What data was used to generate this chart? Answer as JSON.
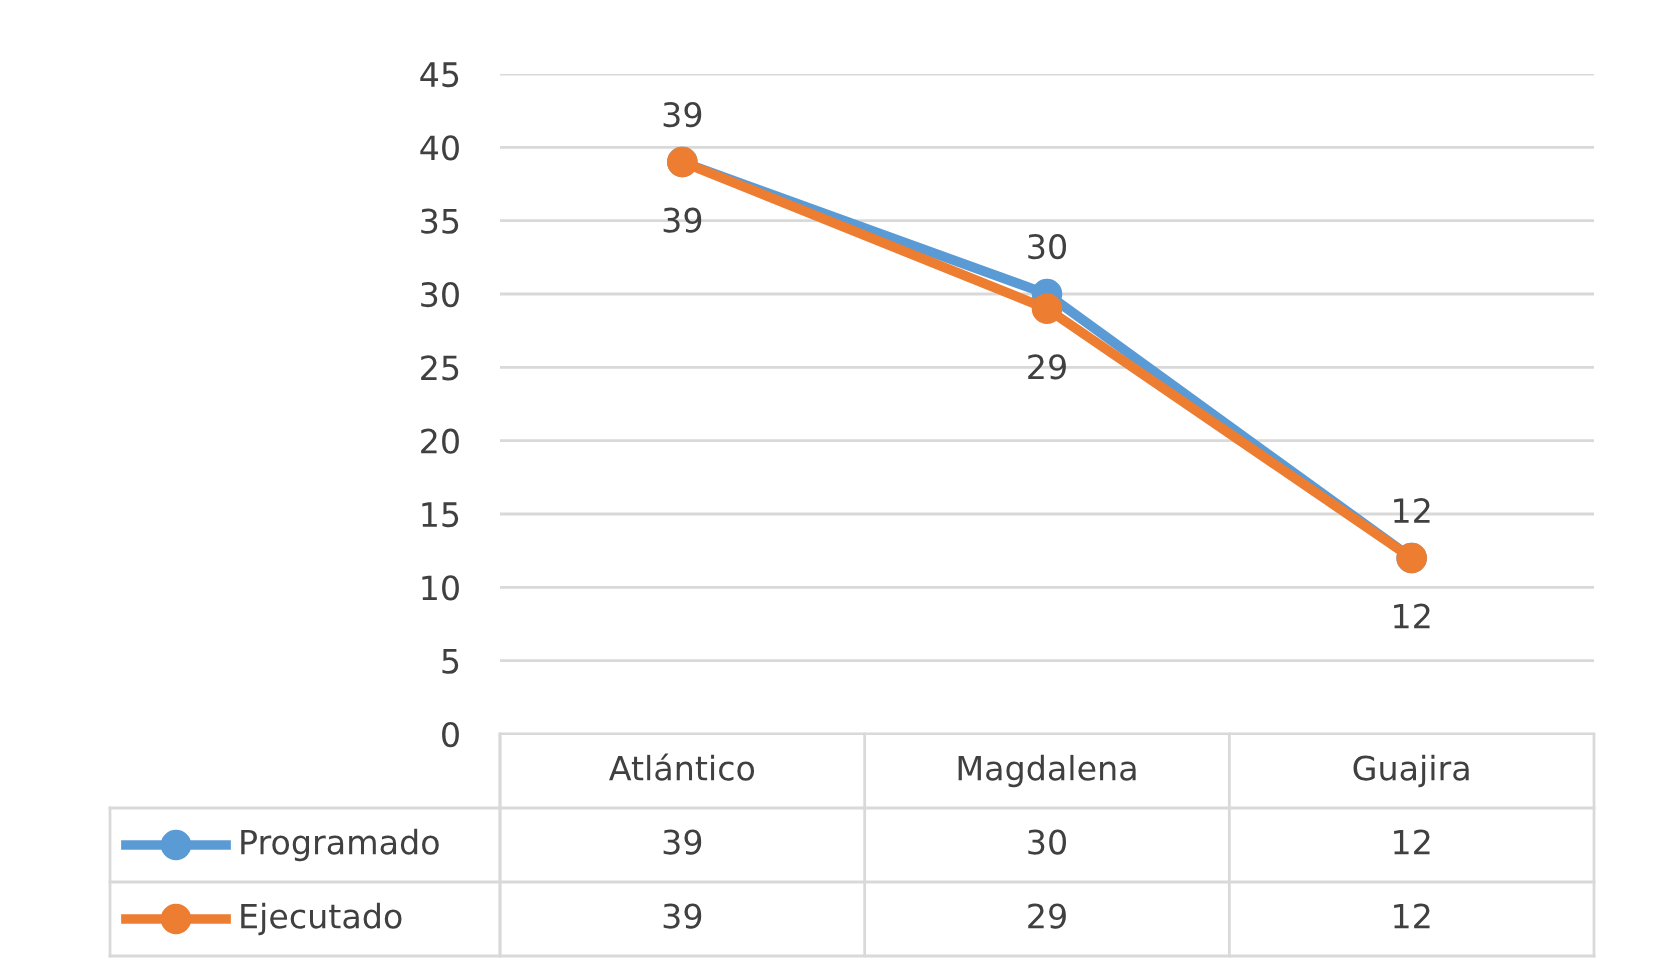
{
  "chart_data": {
    "type": "line",
    "categories": [
      "Atlántico",
      "Magdalena",
      "Guajira"
    ],
    "series": [
      {
        "name": "Programado",
        "color": "#5b9bd5",
        "values": [
          39,
          30,
          12
        ],
        "value_labels": [
          "39",
          "30",
          "12"
        ]
      },
      {
        "name": "Ejecutado",
        "color": "#ed7d31",
        "values": [
          39,
          29,
          12
        ],
        "value_labels": [
          "39",
          "29",
          "12"
        ]
      }
    ],
    "annotations": [
      {
        "text": "39",
        "x": "Atlántico",
        "y": 39
      },
      {
        "text": "30",
        "x": "Magdalena",
        "y": 30
      },
      {
        "text": "12",
        "x": "Guajira",
        "y": 12
      },
      {
        "text": "39",
        "x": "Atlántico",
        "y": 39
      },
      {
        "text": "29",
        "x": "Magdalena",
        "y": 29
      },
      {
        "text": "12",
        "x": "Guajira",
        "y": 12
      }
    ],
    "ylim": [
      0,
      45
    ],
    "yticks": [
      0,
      5,
      10,
      15,
      20,
      25,
      30,
      35,
      40,
      45
    ],
    "grid": "y",
    "marker": "circle",
    "line_style": "solid",
    "legend": "bottom"
  }
}
